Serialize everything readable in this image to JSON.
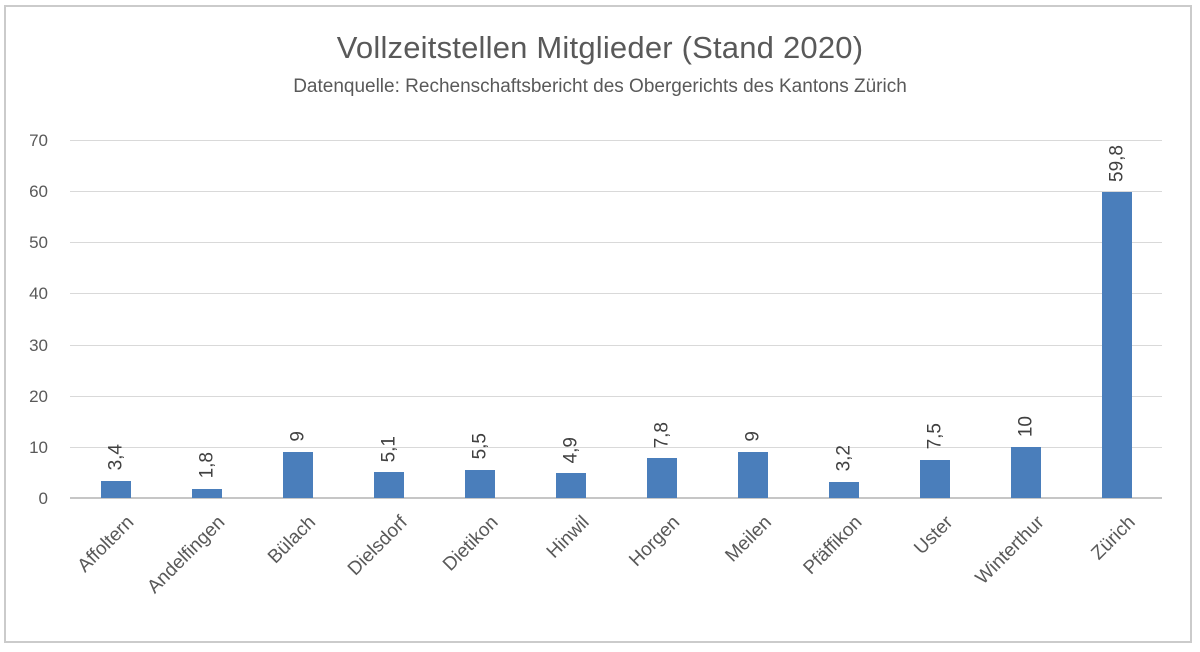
{
  "chart_data": {
    "type": "bar",
    "title": "Vollzeitstellen Mitglieder (Stand 2020)",
    "subtitle": "Datenquelle: Rechenschaftsbericht des Obergerichts des Kantons Zürich",
    "categories": [
      "Affoltern",
      "Andelfingen",
      "Bülach",
      "Dielsdorf",
      "Dietikon",
      "Hinwil",
      "Horgen",
      "Meilen",
      "Pfäffikon",
      "Uster",
      "Winterthur",
      "Zürich"
    ],
    "values": [
      3.4,
      1.8,
      9,
      5.1,
      5.5,
      4.9,
      7.8,
      9,
      3.2,
      7.5,
      10,
      59.8
    ],
    "value_labels": [
      "3,4",
      "1,8",
      "9",
      "5,1",
      "5,5",
      "4,9",
      "7,8",
      "9",
      "3,2",
      "7,5",
      "10",
      "59,8"
    ],
    "xlabel": "",
    "ylabel": "",
    "ylim": [
      0,
      70
    ],
    "yticks": [
      0,
      10,
      20,
      30,
      40,
      50,
      60,
      70
    ],
    "grid": true,
    "legend": "none",
    "value_label_rotation": 90,
    "category_label_rotation": 45,
    "colors": {
      "bar": "#4a7ebb",
      "title_text": "#595959",
      "axis_text": "#595959",
      "value_label_text": "#404040",
      "gridline": "#d9d9d9",
      "axis_line": "#c6c6c6",
      "border": "#cbcbcb",
      "background": "#ffffff"
    }
  }
}
